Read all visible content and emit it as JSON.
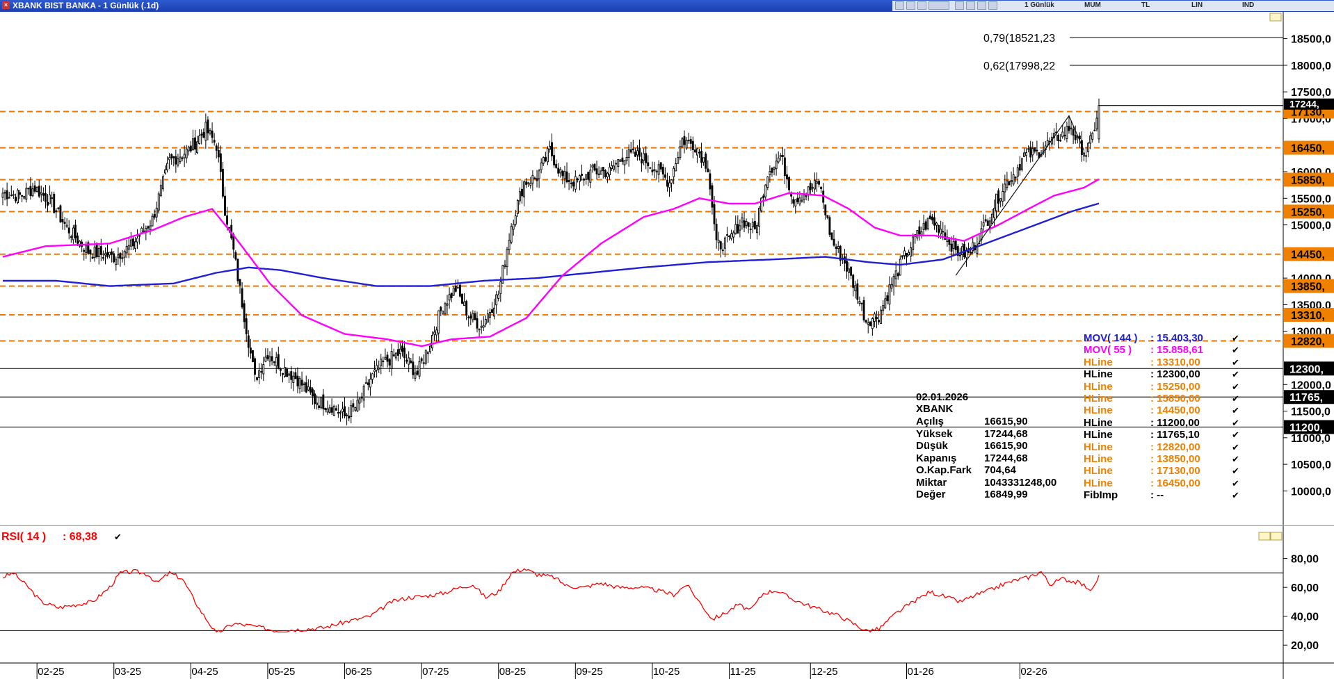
{
  "window": {
    "title": "XBANK BIST BANKA - 1 Günlük (.1d)"
  },
  "toolbar": {
    "period": "1 Günlük",
    "chart_kind": "MUM",
    "currency": "TL",
    "scale": "LIN",
    "indicator_btn": "IND"
  },
  "chart_data": [
    {
      "type": "candlestick",
      "title": "",
      "ylim": [
        9600,
        18900
      ],
      "x_tick_labels": [
        "02-25",
        "03-25",
        "04-25",
        "05-25",
        "06-25",
        "07-25",
        "08-25",
        "09-25",
        "10-25",
        "11-25",
        "12-25",
        "01-26",
        "02-26"
      ],
      "y_tick_labels": [
        "18500,0",
        "18000,0",
        "17500,0",
        "17000,0",
        "16000,0",
        "15500,0",
        "15000,0",
        "14000,0",
        "13500,0",
        "13000,0",
        "12000,0",
        "11500,0",
        "11000,0",
        "10500,0",
        "10000,0"
      ],
      "y_tick_values": [
        18500,
        18000,
        17500,
        17000,
        16000,
        15500,
        15000,
        14000,
        13500,
        13000,
        12000,
        11500,
        11000,
        10500,
        10000
      ],
      "fib_levels": [
        {
          "label": "0,79(18521,23",
          "value": 18521.23
        },
        {
          "label": "0,62(17998,22",
          "value": 17998.22
        }
      ],
      "orange_hlines": [
        {
          "value": 17130,
          "label": "17130,"
        },
        {
          "value": 16450,
          "label": "16450,"
        },
        {
          "value": 15850,
          "label": "15850,"
        },
        {
          "value": 15250,
          "label": "15250,"
        },
        {
          "value": 14450,
          "label": "14450,"
        },
        {
          "value": 13850,
          "label": "13850,"
        },
        {
          "value": 13310,
          "label": "13310,"
        },
        {
          "value": 12820,
          "label": "12820,"
        }
      ],
      "black_hlines": [
        {
          "value": 12300,
          "label": "12300,"
        },
        {
          "value": 11765,
          "label": "11765,"
        },
        {
          "value": 11200,
          "label": "11200,"
        }
      ],
      "last_price": {
        "value": 17244.68,
        "label": "17244,"
      },
      "close_anchors": [
        [
          0,
          15600
        ],
        [
          8,
          15550
        ],
        [
          15,
          15700
        ],
        [
          22,
          15450
        ],
        [
          30,
          14950
        ],
        [
          40,
          14500
        ],
        [
          52,
          14400
        ],
        [
          60,
          14600
        ],
        [
          70,
          15100
        ],
        [
          78,
          16200
        ],
        [
          87,
          16400
        ],
        [
          95,
          16800
        ],
        [
          100,
          16500
        ],
        [
          104,
          15300
        ],
        [
          108,
          14500
        ],
        [
          113,
          13300
        ],
        [
          118,
          12100
        ],
        [
          124,
          12600
        ],
        [
          130,
          12350
        ],
        [
          138,
          12100
        ],
        [
          146,
          11700
        ],
        [
          154,
          11600
        ],
        [
          160,
          11400
        ],
        [
          166,
          11600
        ],
        [
          172,
          12100
        ],
        [
          178,
          12400
        ],
        [
          186,
          12600
        ],
        [
          194,
          12200
        ],
        [
          200,
          12800
        ],
        [
          206,
          13500
        ],
        [
          212,
          13800
        ],
        [
          218,
          13300
        ],
        [
          224,
          13100
        ],
        [
          232,
          13700
        ],
        [
          238,
          15000
        ],
        [
          244,
          15800
        ],
        [
          250,
          15900
        ],
        [
          256,
          16400
        ],
        [
          262,
          15900
        ],
        [
          268,
          15800
        ],
        [
          276,
          16000
        ],
        [
          284,
          16000
        ],
        [
          290,
          16300
        ],
        [
          298,
          16300
        ],
        [
          306,
          16050
        ],
        [
          312,
          15800
        ],
        [
          318,
          16600
        ],
        [
          324,
          16500
        ],
        [
          330,
          16100
        ],
        [
          334,
          14600
        ],
        [
          340,
          14700
        ],
        [
          346,
          15100
        ],
        [
          352,
          14900
        ],
        [
          358,
          16000
        ],
        [
          364,
          16300
        ],
        [
          370,
          15500
        ],
        [
          376,
          15600
        ],
        [
          382,
          15800
        ],
        [
          388,
          14700
        ],
        [
          394,
          14300
        ],
        [
          400,
          13700
        ],
        [
          404,
          13200
        ],
        [
          410,
          13300
        ],
        [
          416,
          13900
        ],
        [
          422,
          14400
        ],
        [
          428,
          14800
        ],
        [
          434,
          15100
        ],
        [
          440,
          14900
        ],
        [
          446,
          14500
        ],
        [
          452,
          14450
        ],
        [
          456,
          14700
        ],
        [
          462,
          15200
        ],
        [
          468,
          15700
        ],
        [
          474,
          16000
        ],
        [
          478,
          16300
        ],
        [
          484,
          16350
        ],
        [
          490,
          16550
        ],
        [
          496,
          16700
        ],
        [
          500,
          16850
        ],
        [
          503,
          16550
        ],
        [
          507,
          16350
        ],
        [
          510,
          16650
        ],
        [
          513,
          17244.68
        ]
      ],
      "trend_line": {
        "points": [
          [
            446,
            14050
          ],
          [
            499,
            17050
          ],
          [
            506,
            16400
          ]
        ]
      },
      "ohlc_box": {
        "date": "02.01.2026",
        "symbol": "XBANK",
        "rows": [
          {
            "label": "Açılış",
            "value": "16615,90"
          },
          {
            "label": "Yüksek",
            "value": "17244,68"
          },
          {
            "label": "Düşük",
            "value": "16615,90"
          },
          {
            "label": "Kapanış",
            "value": "17244,68"
          },
          {
            "label": "O.Kap.Fark",
            "value": "704,64"
          },
          {
            "label": "Miktar",
            "value": "1043331248,00"
          },
          {
            "label": "Değer",
            "value": "16849,99"
          }
        ]
      },
      "legend": [
        {
          "name": "MOV( 144 )",
          "value": ": 15.403,30",
          "color": "#1f1fd6"
        },
        {
          "name": "MOV( 55 )",
          "value": ": 15.858,61",
          "color": "#ff00ff"
        },
        {
          "name": "HLine",
          "value": ": 13310,00",
          "color": "#f08000"
        },
        {
          "name": "HLine",
          "value": ": 12300,00",
          "color": "#000000"
        },
        {
          "name": "HLine",
          "value": ": 15250,00",
          "color": "#f08000"
        },
        {
          "name": "HLine",
          "value": ": 15850,00",
          "color": "#f08000"
        },
        {
          "name": "HLine",
          "value": ": 14450,00",
          "color": "#f08000"
        },
        {
          "name": "HLine",
          "value": ": 11200,00",
          "color": "#000000"
        },
        {
          "name": "HLine",
          "value": ": 11765,10",
          "color": "#000000"
        },
        {
          "name": "HLine",
          "value": ": 12820,00",
          "color": "#f08000"
        },
        {
          "name": "HLine",
          "value": ": 13850,00",
          "color": "#f08000"
        },
        {
          "name": "HLine",
          "value": ": 17130,00",
          "color": "#f08000"
        },
        {
          "name": "HLine",
          "value": ": 16450,00",
          "color": "#f08000"
        },
        {
          "name": "FibImp",
          "value": ": --",
          "color": "#000000"
        }
      ],
      "mov55_anchors": [
        [
          0,
          14400
        ],
        [
          20,
          14600
        ],
        [
          50,
          14650
        ],
        [
          70,
          14900
        ],
        [
          85,
          15150
        ],
        [
          98,
          15300
        ],
        [
          110,
          14700
        ],
        [
          125,
          13900
        ],
        [
          140,
          13300
        ],
        [
          160,
          12950
        ],
        [
          180,
          12850
        ],
        [
          196,
          12720
        ],
        [
          210,
          12850
        ],
        [
          228,
          12900
        ],
        [
          245,
          13250
        ],
        [
          262,
          14050
        ],
        [
          280,
          14650
        ],
        [
          300,
          15150
        ],
        [
          314,
          15300
        ],
        [
          326,
          15500
        ],
        [
          340,
          15400
        ],
        [
          352,
          15400
        ],
        [
          368,
          15600
        ],
        [
          384,
          15550
        ],
        [
          396,
          15300
        ],
        [
          408,
          14950
        ],
        [
          420,
          14800
        ],
        [
          436,
          14800
        ],
        [
          450,
          14700
        ],
        [
          466,
          15000
        ],
        [
          480,
          15300
        ],
        [
          492,
          15550
        ],
        [
          506,
          15700
        ],
        [
          513,
          15858.61
        ]
      ],
      "mov144_anchors": [
        [
          0,
          13950
        ],
        [
          25,
          13950
        ],
        [
          50,
          13850
        ],
        [
          80,
          13900
        ],
        [
          100,
          14100
        ],
        [
          115,
          14200
        ],
        [
          130,
          14150
        ],
        [
          150,
          14000
        ],
        [
          175,
          13850
        ],
        [
          200,
          13850
        ],
        [
          225,
          13950
        ],
        [
          250,
          14000
        ],
        [
          275,
          14100
        ],
        [
          300,
          14200
        ],
        [
          330,
          14300
        ],
        [
          360,
          14350
        ],
        [
          385,
          14400
        ],
        [
          405,
          14300
        ],
        [
          420,
          14250
        ],
        [
          440,
          14350
        ],
        [
          460,
          14650
        ],
        [
          480,
          14950
        ],
        [
          500,
          15250
        ],
        [
          513,
          15403.3
        ]
      ],
      "x_tick_bars": [
        16,
        52,
        88,
        124,
        160,
        196,
        232,
        268,
        304,
        340,
        378,
        423,
        476
      ]
    },
    {
      "type": "line",
      "title": "",
      "legend": {
        "name": "RSI( 14 )",
        "value": ": 68,38",
        "color": "#ff0000"
      },
      "ylim": [
        10,
        88
      ],
      "y_tick_labels": [
        "80,00",
        "60,00",
        "40,00",
        "20,00"
      ],
      "y_tick_values": [
        80,
        60,
        40,
        20
      ],
      "ref_lines": [
        70,
        30
      ],
      "series": [
        {
          "values_anchors": [
            [
              0,
              67
            ],
            [
              5,
              70
            ],
            [
              12,
              60
            ],
            [
              18,
              50
            ],
            [
              26,
              46
            ],
            [
              34,
              48
            ],
            [
              42,
              50
            ],
            [
              50,
              60
            ],
            [
              55,
              70
            ],
            [
              62,
              71
            ],
            [
              68,
              69
            ],
            [
              72,
              63
            ],
            [
              78,
              70
            ],
            [
              84,
              66
            ],
            [
              92,
              45
            ],
            [
              100,
              28
            ],
            [
              108,
              35
            ],
            [
              118,
              33
            ],
            [
              128,
              30
            ],
            [
              140,
              31
            ],
            [
              150,
              32
            ],
            [
              160,
              36
            ],
            [
              172,
              40
            ],
            [
              182,
              50
            ],
            [
              190,
              53
            ],
            [
              198,
              54
            ],
            [
              206,
              56
            ],
            [
              214,
              60
            ],
            [
              220,
              62
            ],
            [
              226,
              53
            ],
            [
              232,
              57
            ],
            [
              238,
              70
            ],
            [
              244,
              73
            ],
            [
              250,
              69
            ],
            [
              258,
              67
            ],
            [
              264,
              61
            ],
            [
              272,
              60
            ],
            [
              280,
              63
            ],
            [
              288,
              60
            ],
            [
              298,
              60
            ],
            [
              306,
              58
            ],
            [
              314,
              55
            ],
            [
              320,
              62
            ],
            [
              326,
              50
            ],
            [
              332,
              38
            ],
            [
              338,
              42
            ],
            [
              344,
              48
            ],
            [
              350,
              44
            ],
            [
              356,
              56
            ],
            [
              362,
              58
            ],
            [
              368,
              53
            ],
            [
              376,
              48
            ],
            [
              384,
              44
            ],
            [
              392,
              40
            ],
            [
              398,
              35
            ],
            [
              404,
              30
            ],
            [
              410,
              31
            ],
            [
              418,
              42
            ],
            [
              426,
              50
            ],
            [
              434,
              57
            ],
            [
              442,
              53
            ],
            [
              448,
              50
            ],
            [
              456,
              55
            ],
            [
              462,
              58
            ],
            [
              468,
              62
            ],
            [
              474,
              65
            ],
            [
              480,
              67
            ],
            [
              486,
              71
            ],
            [
              490,
              62
            ],
            [
              496,
              66
            ],
            [
              504,
              63
            ],
            [
              510,
              58
            ],
            [
              513,
              68.38
            ]
          ]
        }
      ]
    }
  ]
}
